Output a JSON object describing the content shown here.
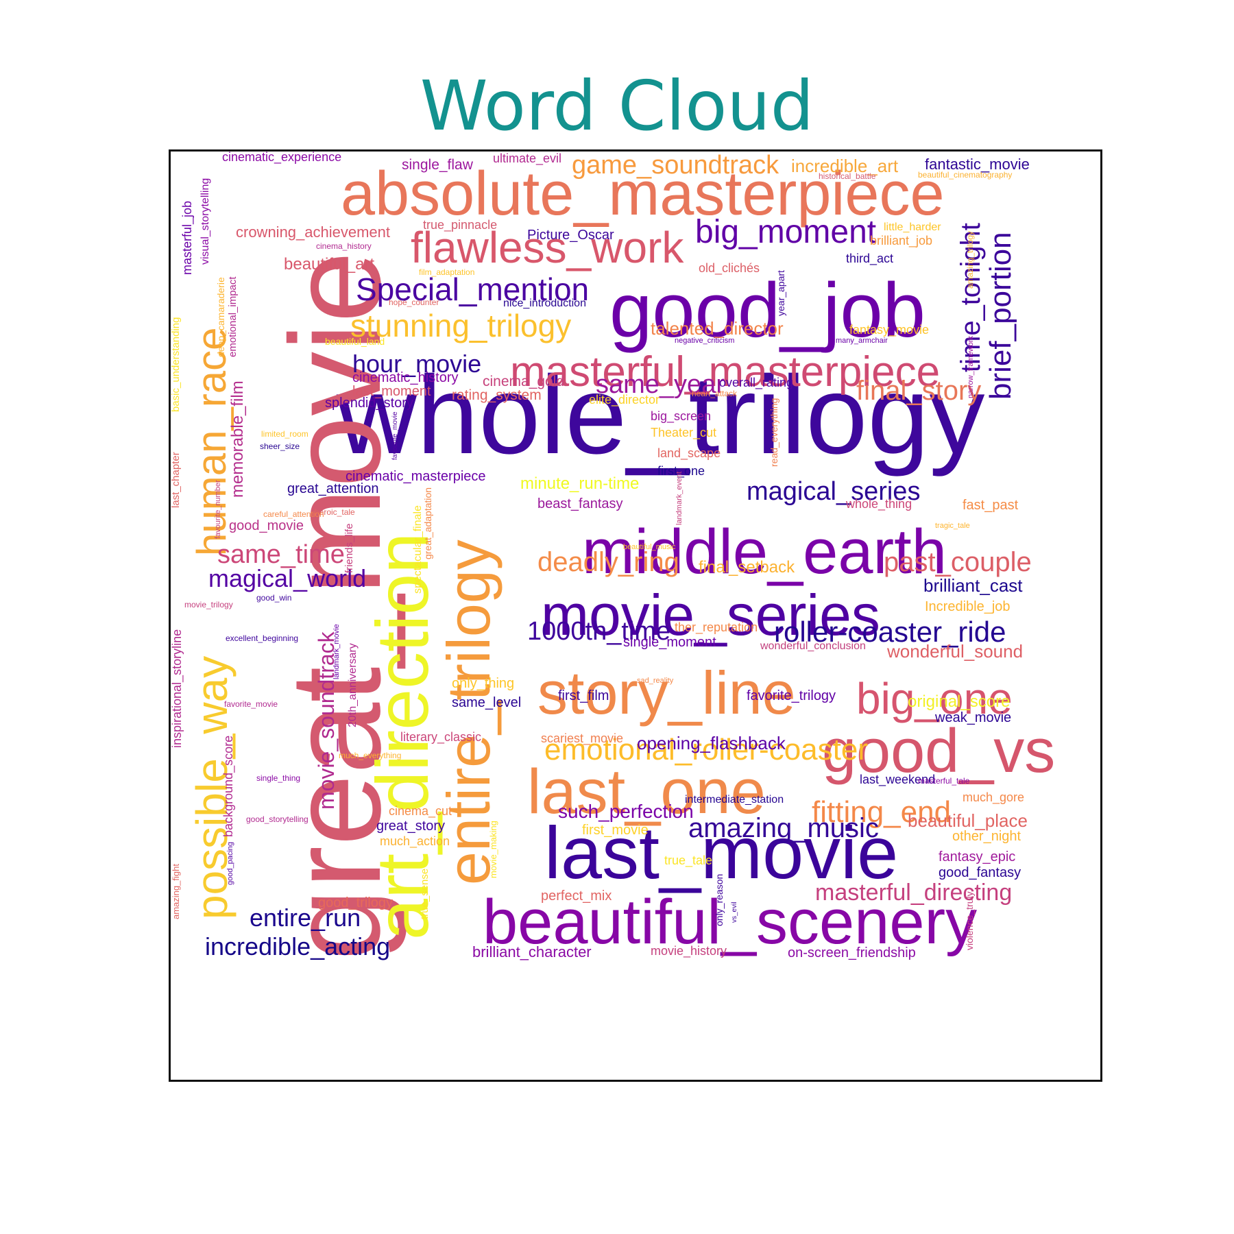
{
  "chart_data": {
    "type": "wordcloud",
    "title": "Word Cloud",
    "colormap": "plasma",
    "words": [
      {
        "text": "whole_trilogy",
        "color": "#3e079c"
      },
      {
        "text": "great_movie",
        "color": "#d45a6f"
      },
      {
        "text": "absolute_masterpiece",
        "color": "#e8765a"
      },
      {
        "text": "good_job",
        "color": "#6b00a8"
      },
      {
        "text": "middle_earth",
        "color": "#7a03a8"
      },
      {
        "text": "movie_series",
        "color": "#4f02a2"
      },
      {
        "text": "last_movie",
        "color": "#3b049a"
      },
      {
        "text": "beautiful_scenery",
        "color": "#8707a6"
      },
      {
        "text": "story_line",
        "color": "#f0894a"
      },
      {
        "text": "art_direction",
        "color": "#eef527"
      },
      {
        "text": "entire_trilogy",
        "color": "#f59b3c"
      },
      {
        "text": "last_one",
        "color": "#f08a4b"
      },
      {
        "text": "good_vs",
        "color": "#d5566c"
      },
      {
        "text": "flawless_work",
        "color": "#d8576b"
      },
      {
        "text": "masterful_masterpiece",
        "color": "#cf4a72"
      },
      {
        "text": "possible_way",
        "color": "#f8cb2e"
      },
      {
        "text": "human_race",
        "color": "#f6a735"
      },
      {
        "text": "big_one",
        "color": "#d6546e"
      },
      {
        "text": "big_moment",
        "color": "#6001a6"
      },
      {
        "text": "Special_mention",
        "color": "#4a03a1"
      },
      {
        "text": "stunning_trilogy",
        "color": "#fbc02d"
      },
      {
        "text": "emotional_roller-coaster",
        "color": "#fdbc2a"
      },
      {
        "text": "fitting_end",
        "color": "#f48849"
      },
      {
        "text": "amazing_music",
        "color": "#330597"
      },
      {
        "text": "roller-coaster_ride",
        "color": "#240691"
      },
      {
        "text": "magical_series",
        "color": "#2a0593"
      },
      {
        "text": "time_tonight",
        "color": "#3d049b"
      },
      {
        "text": "brief_portion",
        "color": "#3b049a"
      },
      {
        "text": "hour_movie",
        "color": "#2c0594"
      },
      {
        "text": "movie_soundtrack",
        "color": "#b02a8f"
      },
      {
        "text": "game_soundtrack",
        "color": "#f79a3d"
      },
      {
        "text": "same_year",
        "color": "#9a179b"
      },
      {
        "text": "deadly_ring",
        "color": "#f48b48"
      },
      {
        "text": "past_couple",
        "color": "#dc5e66"
      },
      {
        "text": "1000th_time",
        "color": "#3e049c"
      },
      {
        "text": "final_story",
        "color": "#e87658"
      },
      {
        "text": "masterful_directing",
        "color": "#c5407e"
      },
      {
        "text": "same_time",
        "color": "#cc4778"
      },
      {
        "text": "magical_world",
        "color": "#5402a3"
      },
      {
        "text": "entire_run",
        "color": "#1a068d"
      },
      {
        "text": "incredible_acting",
        "color": "#150788"
      },
      {
        "text": "opening_flashback",
        "color": "#5c01a6"
      },
      {
        "text": "such_perfection",
        "color": "#7a02a8"
      },
      {
        "text": "beautiful_place",
        "color": "#e16462"
      },
      {
        "text": "wonderful_sound",
        "color": "#de5f65"
      },
      {
        "text": "brilliant_cast",
        "color": "#1b068d"
      },
      {
        "text": "memorable_film",
        "color": "#b42e8d"
      },
      {
        "text": "crowning_achievement",
        "color": "#d8576b"
      },
      {
        "text": "beautiful_art",
        "color": "#d8576b"
      },
      {
        "text": "incredible_art",
        "color": "#f7a73a"
      },
      {
        "text": "fantastic_movie",
        "color": "#2d0594"
      },
      {
        "text": "Picture_Oscar",
        "color": "#3b049a"
      },
      {
        "text": "single_flaw",
        "color": "#9c179e"
      },
      {
        "text": "ultimate_evil",
        "color": "#b12a90"
      },
      {
        "text": "cinematic_experience",
        "color": "#8b0aa5"
      },
      {
        "text": "true_pinnacle",
        "color": "#d45a6f"
      },
      {
        "text": "talented_director",
        "color": "#f2844b"
      },
      {
        "text": "cinematic_history",
        "color": "#8b0aa5"
      },
      {
        "text": "last_moment",
        "color": "#d8576b"
      },
      {
        "text": "cinema_gold",
        "color": "#c7427c"
      },
      {
        "text": "splendid_story",
        "color": "#5b01a5"
      },
      {
        "text": "rating_system",
        "color": "#e16462"
      },
      {
        "text": "overall_rating",
        "color": "#5402a3"
      },
      {
        "text": "elite_director",
        "color": "#fcd225"
      },
      {
        "text": "big_screen",
        "color": "#9c179e"
      },
      {
        "text": "Theater_cut",
        "color": "#fdc328"
      },
      {
        "text": "land_scape",
        "color": "#e26561"
      },
      {
        "text": "first_one",
        "color": "#1c068e"
      },
      {
        "text": "minute_run-time",
        "color": "#f0f921"
      },
      {
        "text": "great_attention",
        "color": "#270591"
      },
      {
        "text": "cinematic_masterpiece",
        "color": "#6a00a8"
      },
      {
        "text": "beast_fantasy",
        "color": "#9a179b"
      },
      {
        "text": "whole_thing",
        "color": "#cc4778"
      },
      {
        "text": "fast_past",
        "color": "#f58c46"
      },
      {
        "text": "final_setback",
        "color": "#fbb130"
      },
      {
        "text": "Incredible_job",
        "color": "#fdb42f"
      },
      {
        "text": "ther_reputation",
        "color": "#f48849"
      },
      {
        "text": "single_moment",
        "color": "#6a00a8"
      },
      {
        "text": "wonderful_conclusion",
        "color": "#c2407e"
      },
      {
        "text": "first_film",
        "color": "#3b049a"
      },
      {
        "text": "favorite_trilogy",
        "color": "#6001a6"
      },
      {
        "text": "original_score",
        "color": "#f2f027"
      },
      {
        "text": "weak_movie",
        "color": "#2c0594"
      },
      {
        "text": "only_thing",
        "color": "#fdc527"
      },
      {
        "text": "same_level",
        "color": "#2a0593"
      },
      {
        "text": "scariest_movie",
        "color": "#f07f4f"
      },
      {
        "text": "literary_classic",
        "color": "#cb4679"
      },
      {
        "text": "good_movie",
        "color": "#b93289"
      },
      {
        "text": "last_weekend",
        "color": "#2c0594"
      },
      {
        "text": "intermediate_station",
        "color": "#250591"
      },
      {
        "text": "much_gore",
        "color": "#f48849"
      },
      {
        "text": "cinema_cut",
        "color": "#f58c46"
      },
      {
        "text": "great_story",
        "color": "#3e049c"
      },
      {
        "text": "much_action",
        "color": "#fbb130"
      },
      {
        "text": "first_movie",
        "color": "#fdd127"
      },
      {
        "text": "other_night",
        "color": "#fdb42f"
      },
      {
        "text": "true_tale",
        "color": "#fbe425"
      },
      {
        "text": "fantasy_epic",
        "color": "#a01a9c"
      },
      {
        "text": "good_fantasy",
        "color": "#2a0593"
      },
      {
        "text": "perfect_mix",
        "color": "#e16462"
      },
      {
        "text": "good_trilogy",
        "color": "#e76a59"
      },
      {
        "text": "brilliant_character",
        "color": "#8b0aa5"
      },
      {
        "text": "movie_history",
        "color": "#c5407e"
      },
      {
        "text": "on-screen_friendship",
        "color": "#8b0aa5"
      },
      {
        "text": "little_harder",
        "color": "#fdc527"
      },
      {
        "text": "brilliant_job",
        "color": "#f79a3d"
      },
      {
        "text": "third_act",
        "color": "#2c0594"
      },
      {
        "text": "old_clichés",
        "color": "#dc5e66"
      },
      {
        "text": "fantasy_movie",
        "color": "#fdc328"
      },
      {
        "text": "nice_introduction",
        "color": "#270591"
      },
      {
        "text": "historical_battle",
        "color": "#d45a6f"
      },
      {
        "text": "beautiful_cinematography",
        "color": "#fbb130"
      },
      {
        "text": "masterful_job",
        "color": "#6a00a8"
      },
      {
        "text": "visual_storytelling",
        "color": "#8b0aa5"
      },
      {
        "text": "emotional_impact",
        "color": "#b12a90"
      },
      {
        "text": "deep_camaraderie",
        "color": "#fdb42f"
      },
      {
        "text": "basic_understanding",
        "color": "#fbe425"
      },
      {
        "text": "last_chapter",
        "color": "#e16462"
      },
      {
        "text": "favourite_number",
        "color": "#c5407e"
      },
      {
        "text": "inspirational_storyline",
        "color": "#b12a90"
      },
      {
        "text": "background_score",
        "color": "#b12a90"
      },
      {
        "text": "good_pacing",
        "color": "#5402a3"
      },
      {
        "text": "amazing_fight",
        "color": "#e26561"
      },
      {
        "text": "20th_anniversary",
        "color": "#b12a90"
      },
      {
        "text": "landmark_movie",
        "color": "#6a00a8"
      },
      {
        "text": "friends_life",
        "color": "#c5407e"
      },
      {
        "text": "favourite_movie",
        "color": "#5402a3"
      },
      {
        "text": "spectacular_finale",
        "color": "#fbe425"
      },
      {
        "text": "great_adaptation",
        "color": "#f48849"
      },
      {
        "text": "movie_making",
        "color": "#fbe425"
      },
      {
        "text": "true_sense",
        "color": "#fbe425"
      },
      {
        "text": "only_reason",
        "color": "#3e049c"
      },
      {
        "text": "vs_evil",
        "color": "#3e049c"
      },
      {
        "text": "read_everything",
        "color": "#f07f4f"
      },
      {
        "text": "landmark_event",
        "color": "#c5407e"
      },
      {
        "text": "year_apart",
        "color": "#3e049c"
      },
      {
        "text": "amazing_trilogy",
        "color": "#fdb42f"
      },
      {
        "text": "narrow_framework",
        "color": "#9c179e"
      },
      {
        "text": "violence_truly",
        "color": "#c5407e"
      },
      {
        "text": "cinema_history",
        "color": "#b12a90"
      },
      {
        "text": "film_adaptation",
        "color": "#fdc328"
      },
      {
        "text": "hope_counter",
        "color": "#e16462"
      },
      {
        "text": "beautiful_land",
        "color": "#fbe425"
      },
      {
        "text": "negative_criticism",
        "color": "#6a00a8"
      },
      {
        "text": "many_armchair",
        "color": "#6a00a8"
      },
      {
        "text": "heart_attack",
        "color": "#f48849"
      },
      {
        "text": "limited_room",
        "color": "#fdc328"
      },
      {
        "text": "sheer_size",
        "color": "#270591"
      },
      {
        "text": "heroic_tale",
        "color": "#e16462"
      },
      {
        "text": "careful_attention",
        "color": "#f48849"
      },
      {
        "text": "beautiful_music",
        "color": "#fdc328"
      },
      {
        "text": "tragic_tale",
        "color": "#fdb42f"
      },
      {
        "text": "good_win",
        "color": "#3e049c"
      },
      {
        "text": "movie_trilogy",
        "color": "#c5407e"
      },
      {
        "text": "excellent_beginning",
        "color": "#3e049c"
      },
      {
        "text": "sad_reality",
        "color": "#f48849"
      },
      {
        "text": "favorite_movie",
        "color": "#b12a90"
      },
      {
        "text": "much_everything",
        "color": "#fdb42f"
      },
      {
        "text": "single_thing",
        "color": "#8b0aa5"
      },
      {
        "text": "good_storytelling",
        "color": "#b12a90"
      },
      {
        "text": "masterful_tale",
        "color": "#8b0aa5"
      }
    ]
  }
}
